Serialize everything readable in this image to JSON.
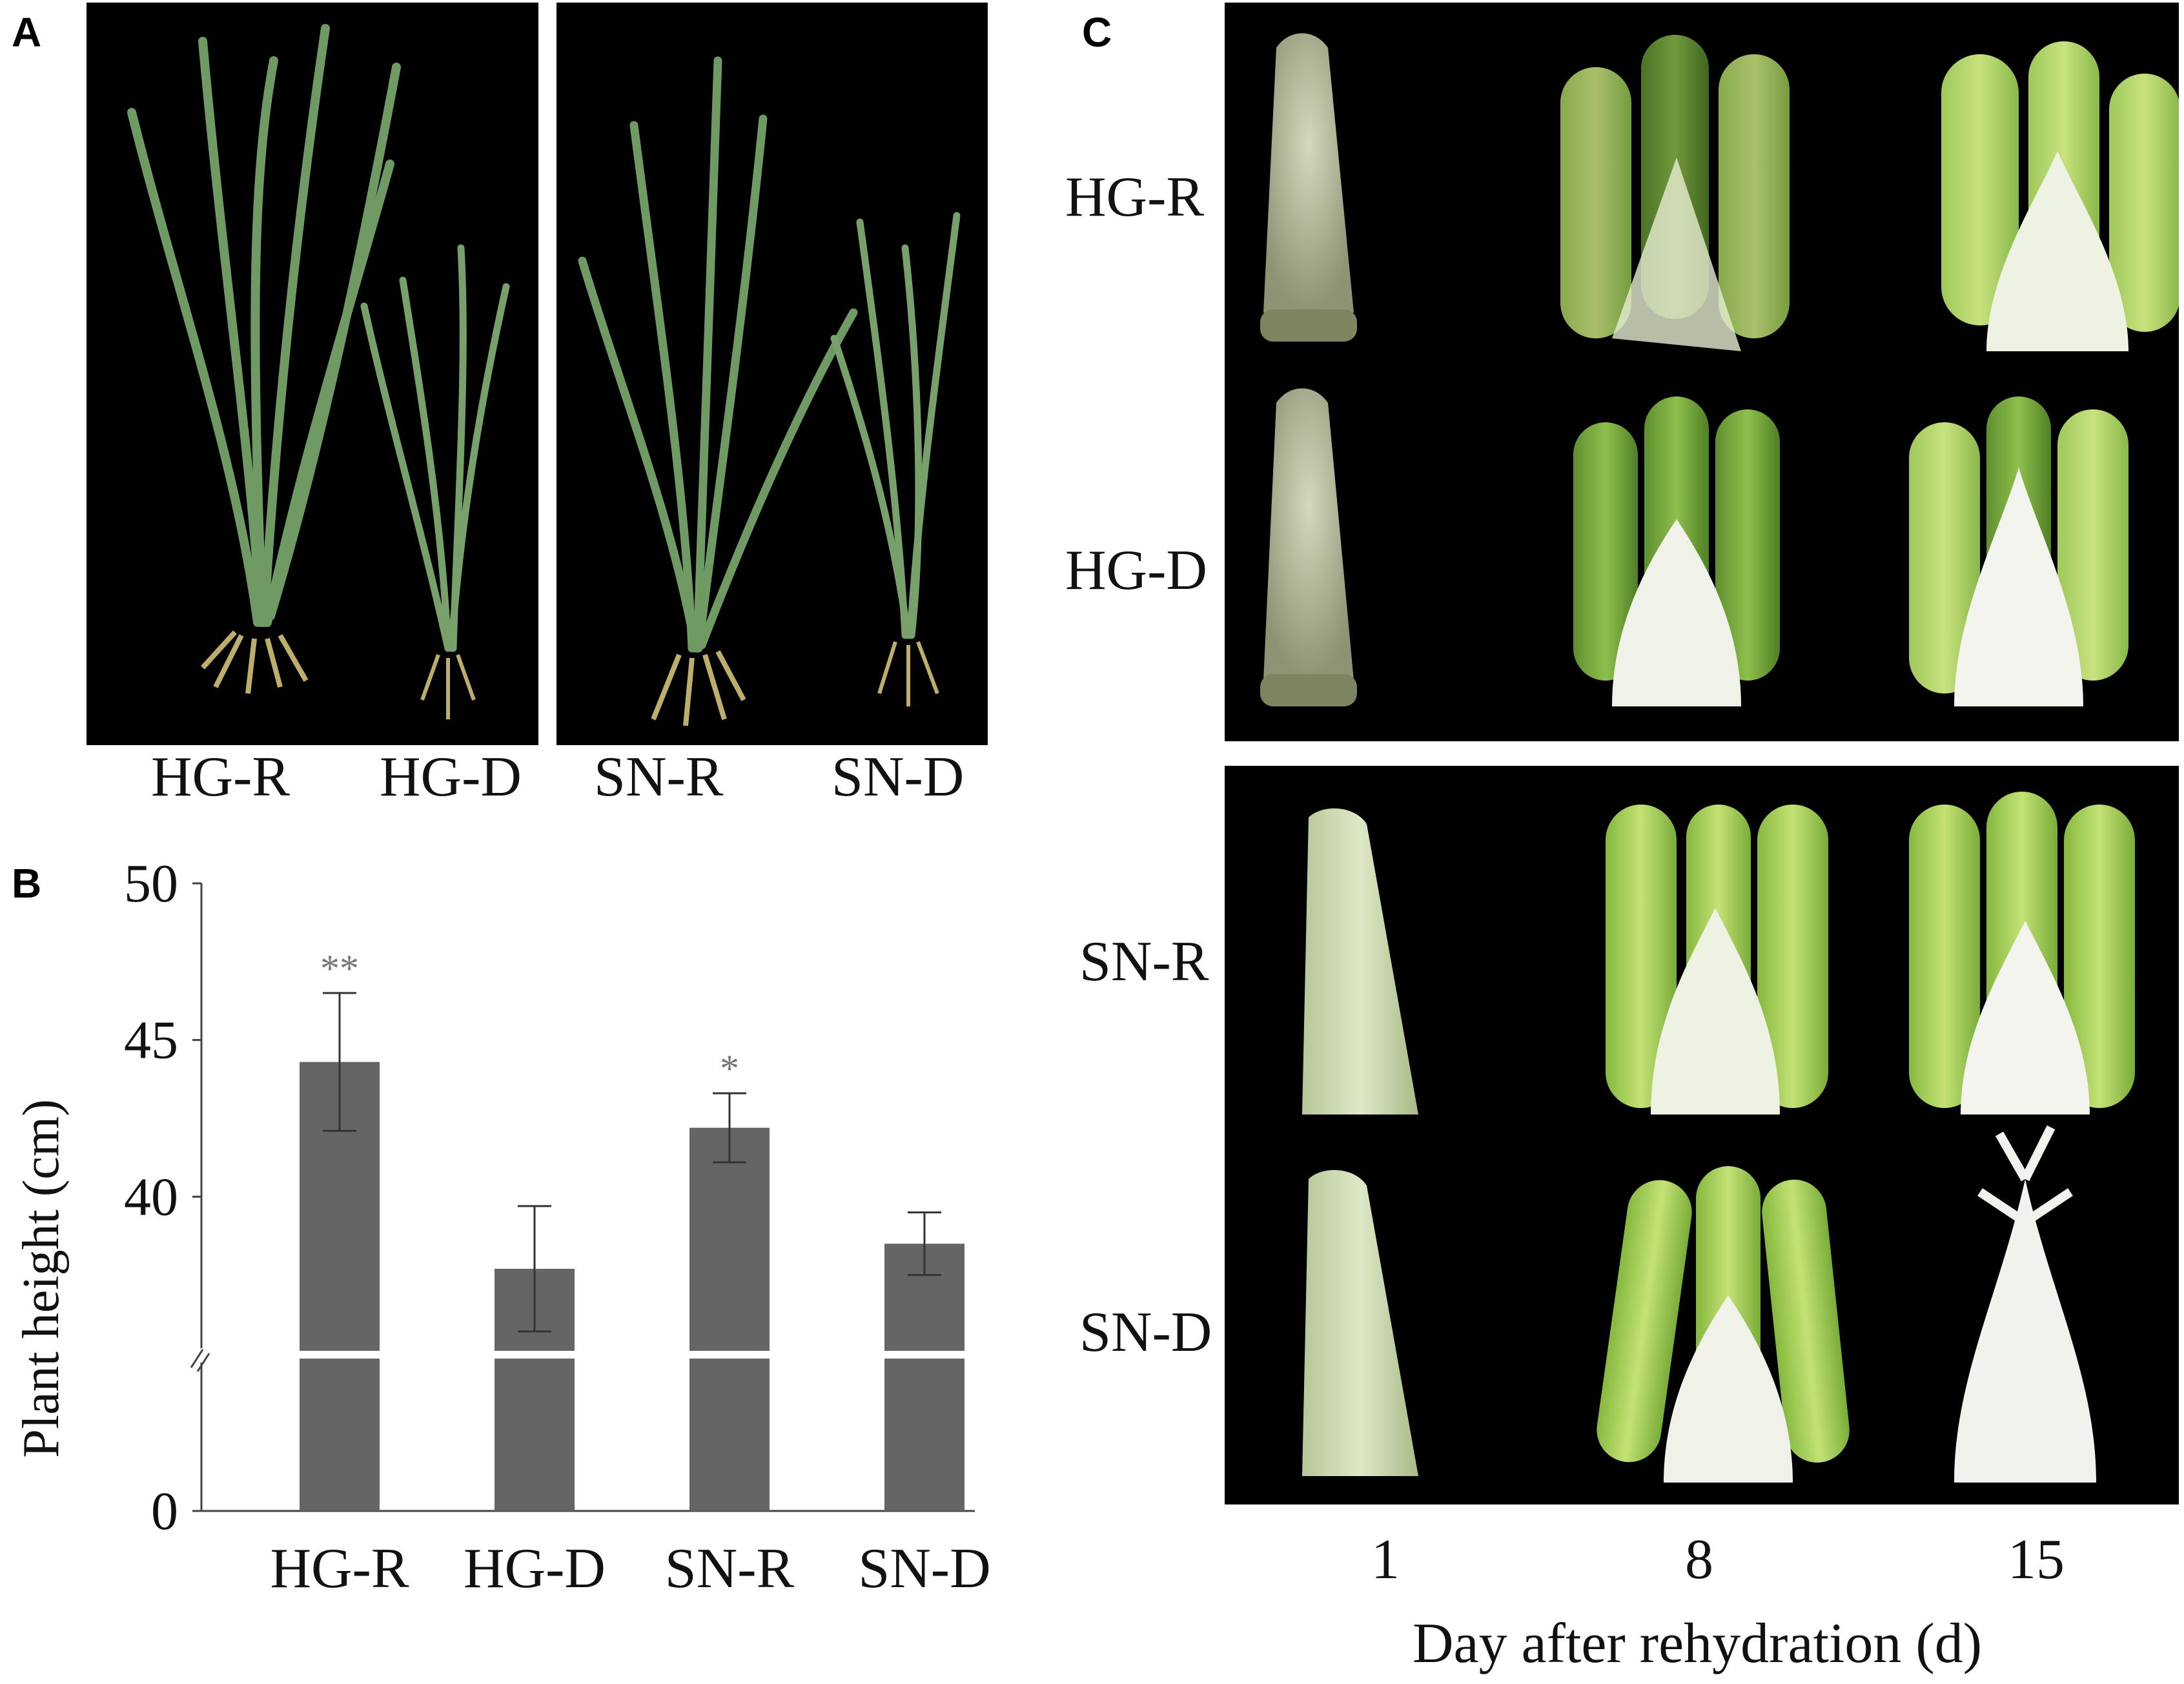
{
  "panels": {
    "a": {
      "letter": "A",
      "labels": [
        "HG-R",
        "HG-D",
        "SN-R",
        "SN-D"
      ]
    },
    "b": {
      "letter": "B"
    },
    "c": {
      "letter": "C",
      "row_labels": [
        "HG-R",
        "HG-D",
        "SN-R",
        "SN-D"
      ],
      "col_labels": [
        "1",
        "8",
        "15"
      ],
      "xlabel": "Day after rehydration (d)"
    }
  },
  "chart_data": {
    "type": "bar",
    "categories": [
      "HG-R",
      "HG-D",
      "SN-R",
      "SN-D"
    ],
    "values": [
      44.3,
      37.7,
      42.2,
      38.5
    ],
    "errors": [
      2.2,
      2.0,
      1.1,
      1.0
    ],
    "significance": [
      "**",
      "",
      "*",
      ""
    ],
    "ylabel": "Plant height (cm)",
    "yticks": [
      "0",
      "40",
      "45",
      "50"
    ],
    "axis_break": true,
    "upper_range": [
      35,
      50
    ],
    "colors": {
      "bar": "#646664",
      "significance": "#777777",
      "axis": "#444444"
    }
  }
}
